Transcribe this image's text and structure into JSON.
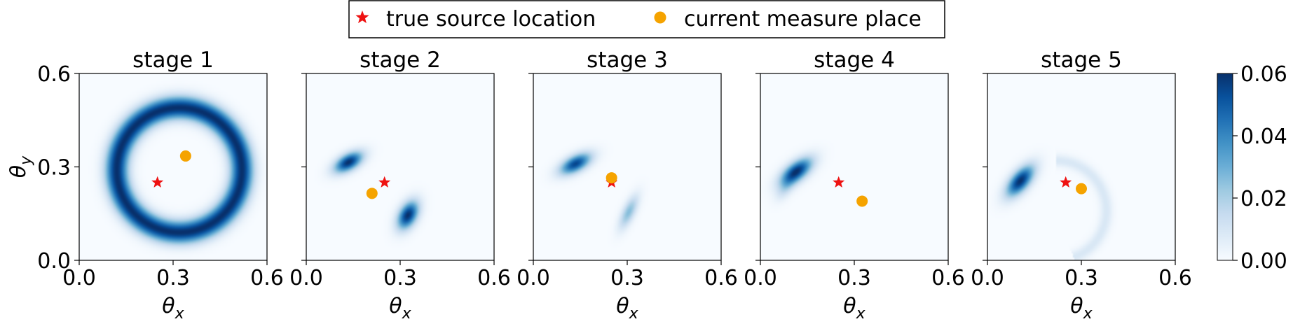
{
  "legend": {
    "items": [
      {
        "label": "true source location",
        "marker": "star",
        "color": "#ee1111"
      },
      {
        "label": "current measure place",
        "marker": "circle",
        "color": "#f5a300"
      }
    ]
  },
  "colorbar": {
    "colormap": "Blues",
    "range": [
      0.0,
      0.06
    ],
    "ticks": [
      "0.00",
      "0.02",
      "0.04",
      "0.06"
    ]
  },
  "axes": {
    "xlabel": "θx",
    "ylabel": "θy",
    "xlim": [
      0.0,
      0.6
    ],
    "ylim": [
      0.0,
      0.6
    ],
    "xticks": [
      "0.0",
      "0.3",
      "0.6"
    ],
    "yticks": [
      "0.0",
      "0.3",
      "0.6"
    ]
  },
  "chart_data": [
    {
      "type": "heatmap",
      "title": "stage 1",
      "true_source": [
        0.25,
        0.25
      ],
      "measure": [
        0.34,
        0.335
      ],
      "share_y_labels": true,
      "density": [
        {
          "kind": "ring",
          "cx": 0.32,
          "cy": 0.29,
          "r": 0.2,
          "width": 0.026,
          "peak": 0.06
        }
      ]
    },
    {
      "type": "heatmap",
      "title": "stage 2",
      "true_source": [
        0.25,
        0.25
      ],
      "measure": [
        0.21,
        0.215
      ],
      "density": [
        {
          "kind": "blob",
          "cx": 0.135,
          "cy": 0.315,
          "sx": 0.035,
          "sy": 0.018,
          "angle": 30,
          "peak": 0.06
        },
        {
          "kind": "blob",
          "cx": 0.325,
          "cy": 0.145,
          "sx": 0.034,
          "sy": 0.02,
          "angle": 62,
          "peak": 0.06
        }
      ]
    },
    {
      "type": "heatmap",
      "title": "stage 3",
      "true_source": [
        0.25,
        0.25
      ],
      "measure": [
        0.25,
        0.265
      ],
      "density": [
        {
          "kind": "blob",
          "cx": 0.135,
          "cy": 0.31,
          "sx": 0.038,
          "sy": 0.018,
          "angle": 28,
          "peak": 0.055
        },
        {
          "kind": "blob",
          "cx": 0.305,
          "cy": 0.155,
          "sx": 0.04,
          "sy": 0.014,
          "angle": 65,
          "peak": 0.026
        }
      ]
    },
    {
      "type": "heatmap",
      "title": "stage 4",
      "true_source": [
        0.25,
        0.25
      ],
      "measure": [
        0.325,
        0.19
      ],
      "density": [
        {
          "kind": "blob",
          "cx": 0.115,
          "cy": 0.285,
          "sx": 0.042,
          "sy": 0.02,
          "angle": 38,
          "peak": 0.06
        },
        {
          "kind": "blob",
          "cx": 0.08,
          "cy": 0.23,
          "sx": 0.03,
          "sy": 0.015,
          "angle": 55,
          "peak": 0.012
        }
      ]
    },
    {
      "type": "heatmap",
      "title": "stage 5",
      "true_source": [
        0.25,
        0.25
      ],
      "measure": [
        0.3,
        0.23
      ],
      "density": [
        {
          "kind": "blob",
          "cx": 0.105,
          "cy": 0.255,
          "sx": 0.042,
          "sy": 0.02,
          "angle": 50,
          "peak": 0.06
        },
        {
          "kind": "arc",
          "cx": 0.22,
          "cy": 0.16,
          "r": 0.16,
          "width": 0.014,
          "a0": -70,
          "a1": 90,
          "peak": 0.009
        }
      ]
    }
  ]
}
